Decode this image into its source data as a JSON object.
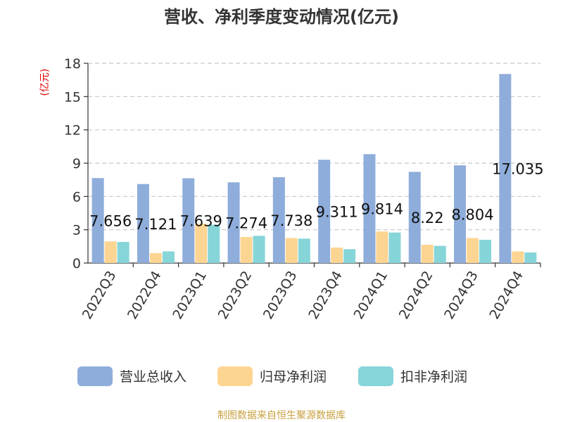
{
  "colors": {
    "revenue": "#8eaddb",
    "net_profit": "#fdd593",
    "deducted_net_profit": "#86d5d8",
    "unit": "#e00000",
    "source": "#c8a040"
  },
  "chart_data": {
    "type": "bar",
    "title": "营收、净利季度变动情况(亿元)",
    "unit_label": "(亿元)",
    "categories": [
      "2022Q3",
      "2022Q4",
      "2023Q1",
      "2023Q2",
      "2023Q3",
      "2023Q4",
      "2024Q1",
      "2024Q2",
      "2024Q3",
      "2024Q4"
    ],
    "series": [
      {
        "name": "营业总收入",
        "values": [
          7.656,
          7.121,
          7.639,
          7.274,
          7.738,
          9.311,
          9.814,
          8.22,
          8.804,
          17.035
        ],
        "labels": [
          "7.656",
          "7.121",
          "7.639",
          "7.274",
          "7.738",
          "9.311",
          "9.814",
          "8.22",
          "8.804",
          "17.035"
        ]
      },
      {
        "name": "归母净利润",
        "values": [
          1.95,
          0.9,
          3.55,
          2.35,
          2.25,
          1.4,
          2.85,
          1.65,
          2.25,
          1.05
        ]
      },
      {
        "name": "扣非净利润",
        "values": [
          1.9,
          1.05,
          3.45,
          2.45,
          2.2,
          1.25,
          2.75,
          1.55,
          2.1,
          0.95
        ]
      }
    ],
    "ylim": [
      0,
      18
    ],
    "yticks": [
      "0",
      "3",
      "6",
      "9",
      "12",
      "15",
      "18"
    ],
    "grid": true,
    "legend_position": "bottom"
  },
  "source_text": "制图数据来自恒生聚源数据库"
}
